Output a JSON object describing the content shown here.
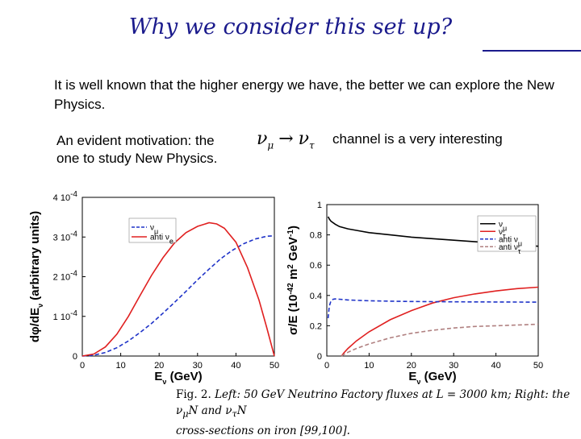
{
  "slide": {
    "title": "Why we consider this set up?",
    "paragraph1": "It is well known that the higher energy we have, the better we can explore the New Physics.",
    "paragraph2_start": "An evident motivation: the",
    "paragraph2_end": "channel is a very interesting",
    "paragraph2_line2": "one to study New Physics.",
    "formula": {
      "from": "ν",
      "from_sub": "μ",
      "arrow": "→",
      "to": "ν",
      "to_sub": "τ"
    }
  },
  "caption": {
    "label": "Fig. 2.",
    "text": "Left: 50 GeV Neutrino Factory fluxes at L = 3000 km; Right: the ν",
    "sub1": "μ",
    "mid": "N and ν",
    "sub2": "τ",
    "end": "N",
    "line2": "cross-sections on iron [99,100]."
  },
  "chart_data": [
    {
      "type": "line",
      "ylabel": "dφ/dEν (arbitrary units)",
      "xlabel": "Eν (GeV)",
      "xlim": [
        0,
        50
      ],
      "ylim": [
        0,
        0.0004
      ],
      "xticks": [
        "0",
        "10",
        "20",
        "30",
        "40",
        "50"
      ],
      "yticks": [
        "0",
        "1 10",
        "2 10",
        "3 10",
        "4 10"
      ],
      "ytick_exp": "-4",
      "legend": [
        "ν",
        "anti ν"
      ],
      "legend_subs": [
        "μ",
        "e"
      ],
      "legend_position": "top-left",
      "series": [
        {
          "name": "νμ",
          "style": "dashed",
          "color": "#1f33c8",
          "x": [
            0,
            3,
            6,
            9,
            12,
            15,
            18,
            21,
            24,
            27,
            30,
            33,
            36,
            39,
            42,
            45,
            48,
            50
          ],
          "y": [
            0,
            2e-06,
            9e-06,
            2.1e-05,
            3.8e-05,
            5.9e-05,
            8.2e-05,
            0.000108,
            0.000135,
            0.000163,
            0.000192,
            0.000219,
            0.000245,
            0.000266,
            0.000283,
            0.000295,
            0.000302,
            0.000303
          ]
        },
        {
          "name": "anti νe",
          "style": "solid",
          "color": "#e02020",
          "x": [
            0,
            3,
            6,
            9,
            12,
            15,
            18,
            21,
            24,
            27,
            30,
            33,
            35,
            37,
            40,
            43,
            46,
            48,
            50
          ],
          "y": [
            0,
            5e-06,
            2.3e-05,
            5.5e-05,
            0.0001,
            0.000152,
            0.000203,
            0.000248,
            0.000285,
            0.000311,
            0.000327,
            0.000336,
            0.000333,
            0.000322,
            0.000287,
            0.000223,
            0.000141,
            7.2e-05,
            0
          ]
        }
      ]
    },
    {
      "type": "line",
      "ylabel": "σ/E (10 m GeV)",
      "ylabel_parts": {
        "a": "σ/E (10",
        "exp1": "-42",
        "b": " m",
        "exp2": "2",
        "c": " GeV",
        "exp3": "-1",
        "d": ")"
      },
      "xlabel": "Eν (GeV)",
      "xlim": [
        0,
        50
      ],
      "ylim": [
        0,
        1
      ],
      "xticks": [
        "0",
        "10",
        "20",
        "30",
        "40",
        "50"
      ],
      "yticks": [
        "0",
        "0.2",
        "0.4",
        "0.6",
        "0.8",
        "1"
      ],
      "legend": [
        "ν",
        "ν",
        "anti ν",
        "anti ν"
      ],
      "legend_subs": [
        "μ",
        "τ",
        "μ",
        "τ"
      ],
      "legend_position": "top-right",
      "series": [
        {
          "name": "νμ",
          "style": "solid",
          "color": "#000000",
          "x": [
            0.3,
            0.6,
            1,
            2,
            3,
            5,
            7,
            10,
            15,
            20,
            25,
            30,
            35,
            40,
            45,
            50
          ],
          "y": [
            0.92,
            0.905,
            0.89,
            0.87,
            0.855,
            0.84,
            0.83,
            0.815,
            0.8,
            0.785,
            0.775,
            0.765,
            0.755,
            0.745,
            0.735,
            0.725
          ]
        },
        {
          "name": "ντ",
          "style": "solid",
          "color": "#e02020",
          "x": [
            3.5,
            4,
            5,
            7,
            10,
            15,
            20,
            25,
            30,
            35,
            40,
            45,
            50
          ],
          "y": [
            0,
            0.02,
            0.05,
            0.1,
            0.16,
            0.24,
            0.3,
            0.35,
            0.385,
            0.41,
            0.43,
            0.445,
            0.455
          ]
        },
        {
          "name": "anti νμ",
          "style": "dashed",
          "color": "#1f33c8",
          "x": [
            0.3,
            0.6,
            1,
            1.5,
            2,
            3,
            5,
            10,
            15,
            20,
            30,
            40,
            50
          ],
          "y": [
            0.25,
            0.33,
            0.365,
            0.375,
            0.377,
            0.375,
            0.37,
            0.365,
            0.362,
            0.36,
            0.358,
            0.357,
            0.356
          ]
        },
        {
          "name": "anti ντ",
          "style": "dashed",
          "color": "#b08080",
          "x": [
            3.5,
            4,
            5,
            7,
            10,
            15,
            20,
            25,
            30,
            35,
            40,
            45,
            50
          ],
          "y": [
            0,
            0.01,
            0.025,
            0.05,
            0.08,
            0.12,
            0.15,
            0.17,
            0.185,
            0.195,
            0.2,
            0.205,
            0.21
          ]
        }
      ]
    }
  ]
}
